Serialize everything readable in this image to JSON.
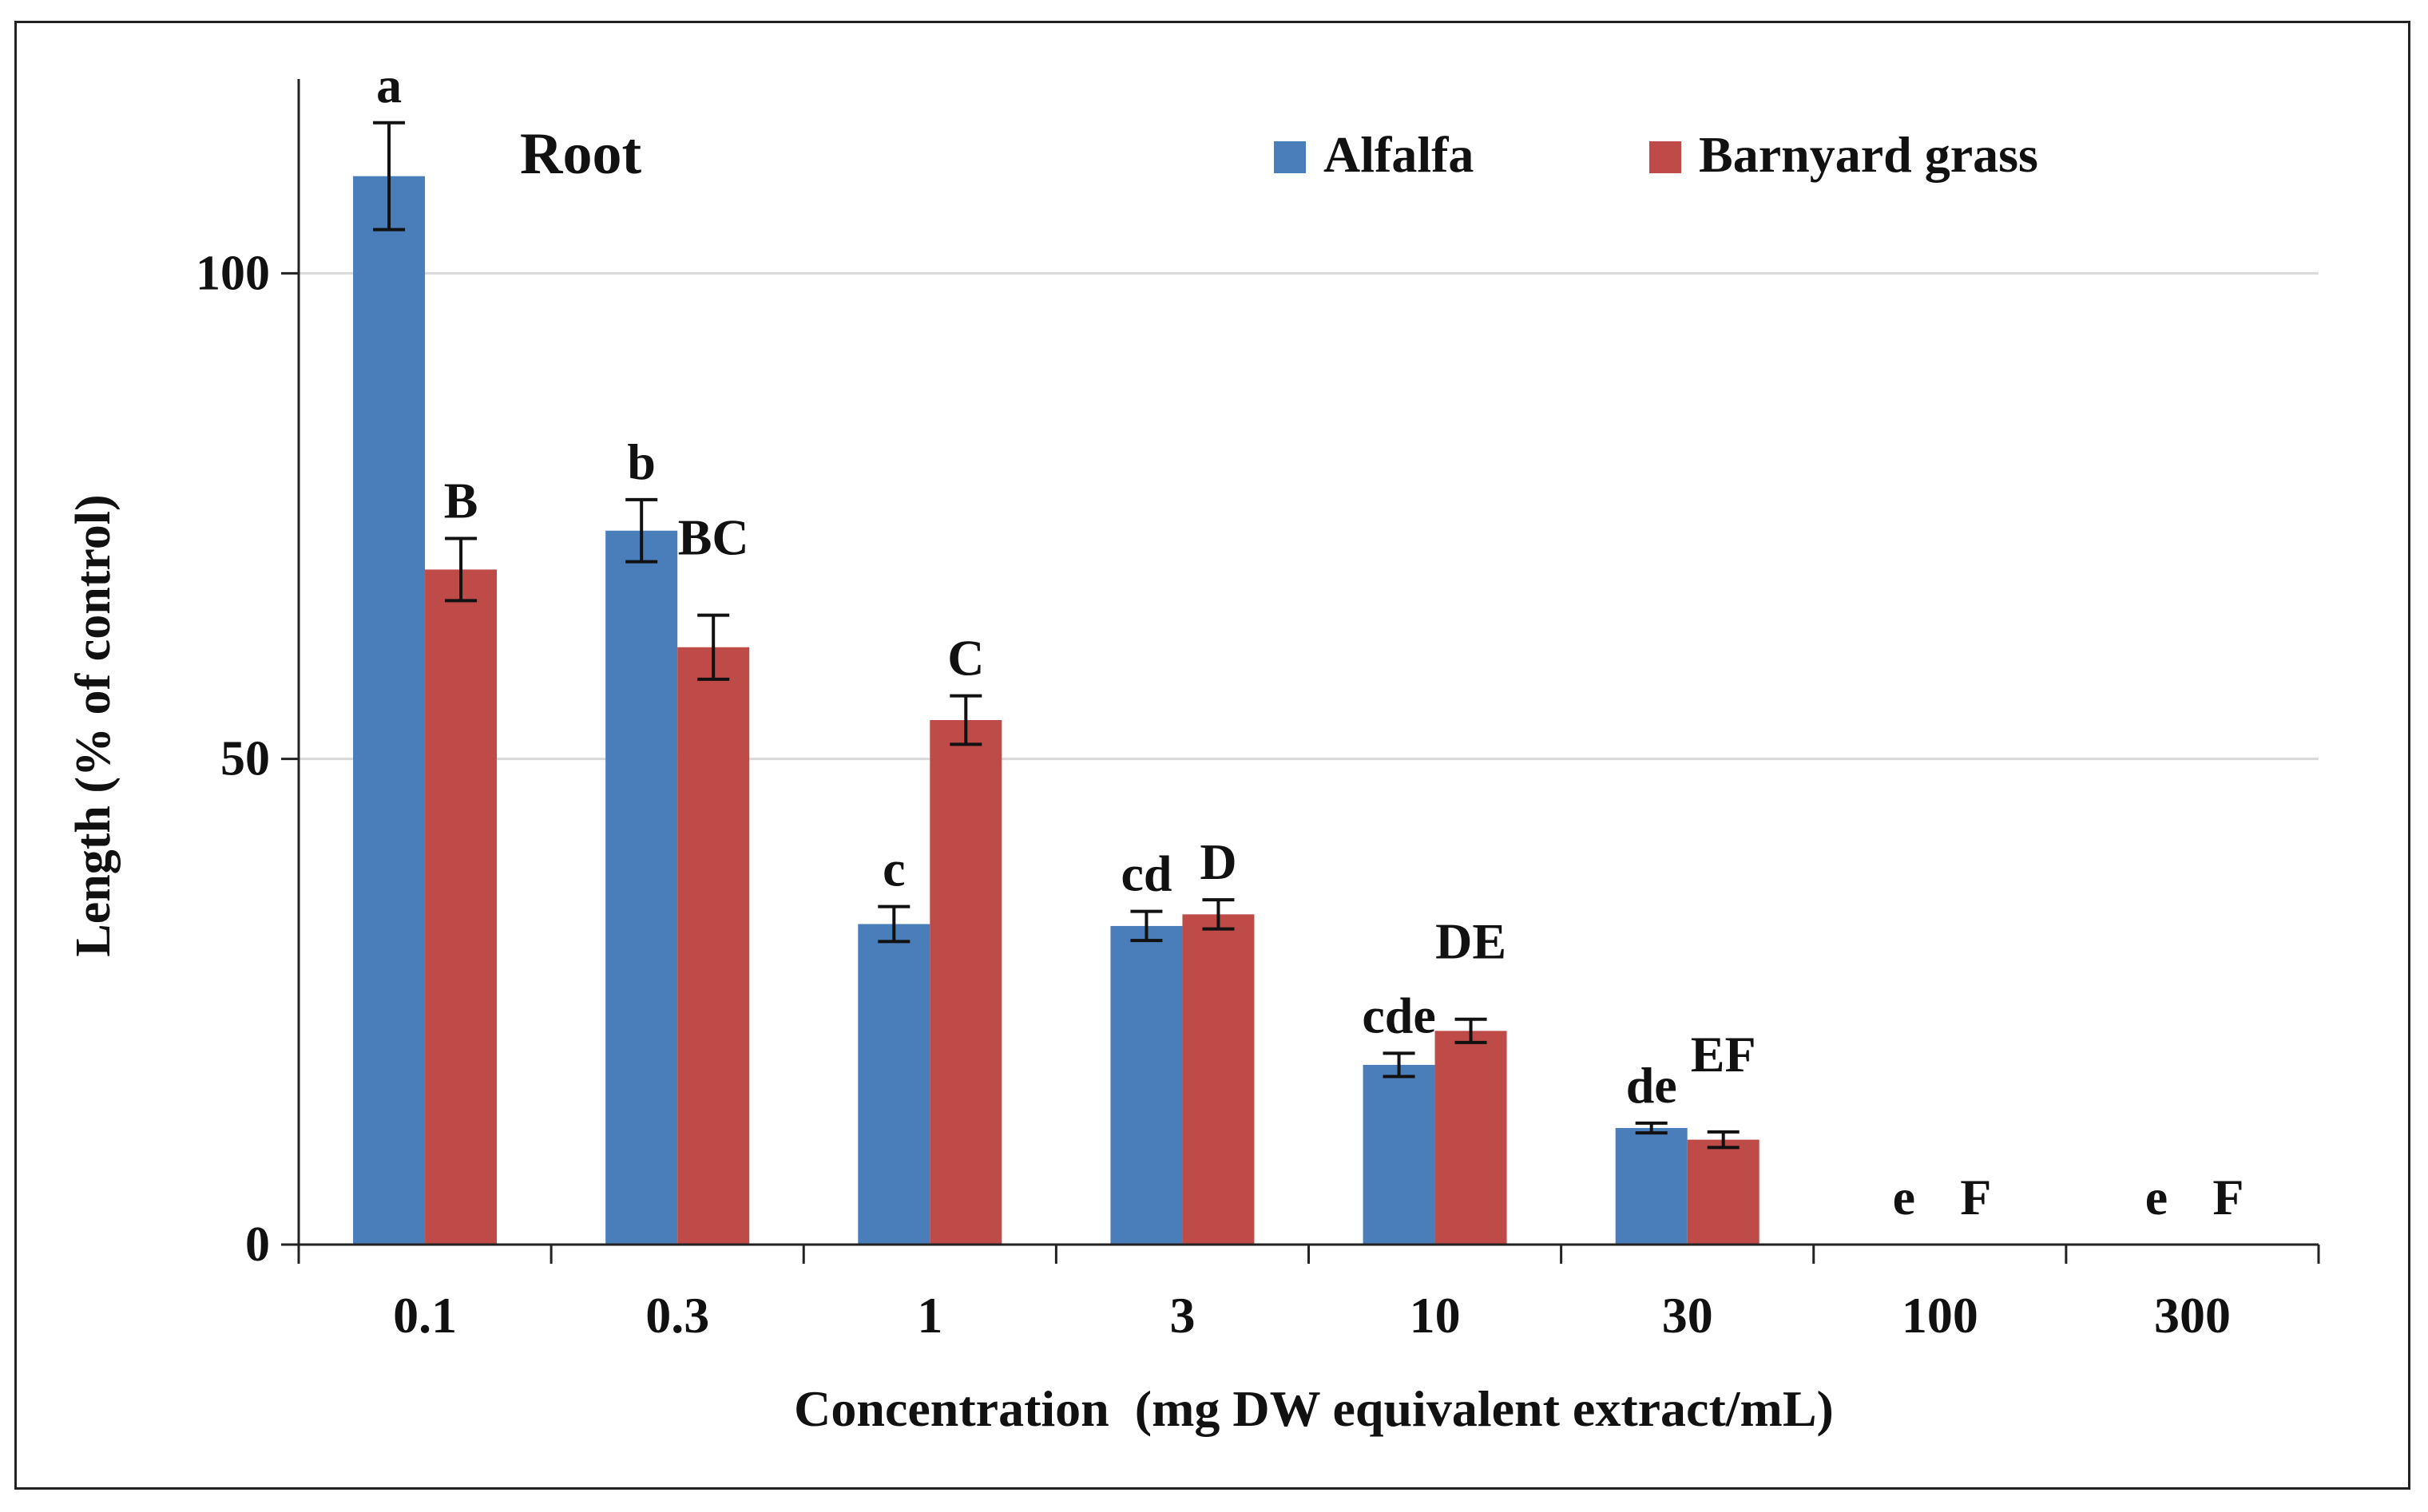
{
  "chart_data": {
    "type": "bar",
    "title": "Root",
    "xlabel": "Concentration  (mg DW equivalent extract/mL)",
    "ylabel": "Length (% of control)",
    "categories": [
      "0.1",
      "0.3",
      "1",
      "3",
      "10",
      "30",
      "100",
      "300"
    ],
    "ylim": [
      0,
      120
    ],
    "yticks": [
      0,
      50,
      100
    ],
    "grid": true,
    "legend_position": "top-right",
    "series": [
      {
        "name": "Alfalfa",
        "color": "#4a7ebb",
        "values": [
          110,
          73.5,
          33,
          32.8,
          18.5,
          12,
          0,
          0
        ],
        "errors": [
          5.5,
          3.2,
          1.8,
          1.5,
          1.2,
          0.5,
          0,
          0
        ],
        "letters": [
          "a",
          "b",
          "c",
          "cd",
          "cde",
          "de",
          "e",
          "e"
        ]
      },
      {
        "name": "Barnyard grass",
        "color": "#be4b48",
        "values": [
          69.5,
          61.5,
          54,
          34,
          22,
          10.8,
          0,
          0
        ],
        "errors": [
          3.2,
          3.3,
          2.5,
          1.5,
          1.2,
          0.8,
          0,
          0
        ],
        "letters": [
          "B",
          "BC",
          "C",
          "D",
          "DE",
          "EF",
          "F",
          "F"
        ]
      }
    ]
  }
}
